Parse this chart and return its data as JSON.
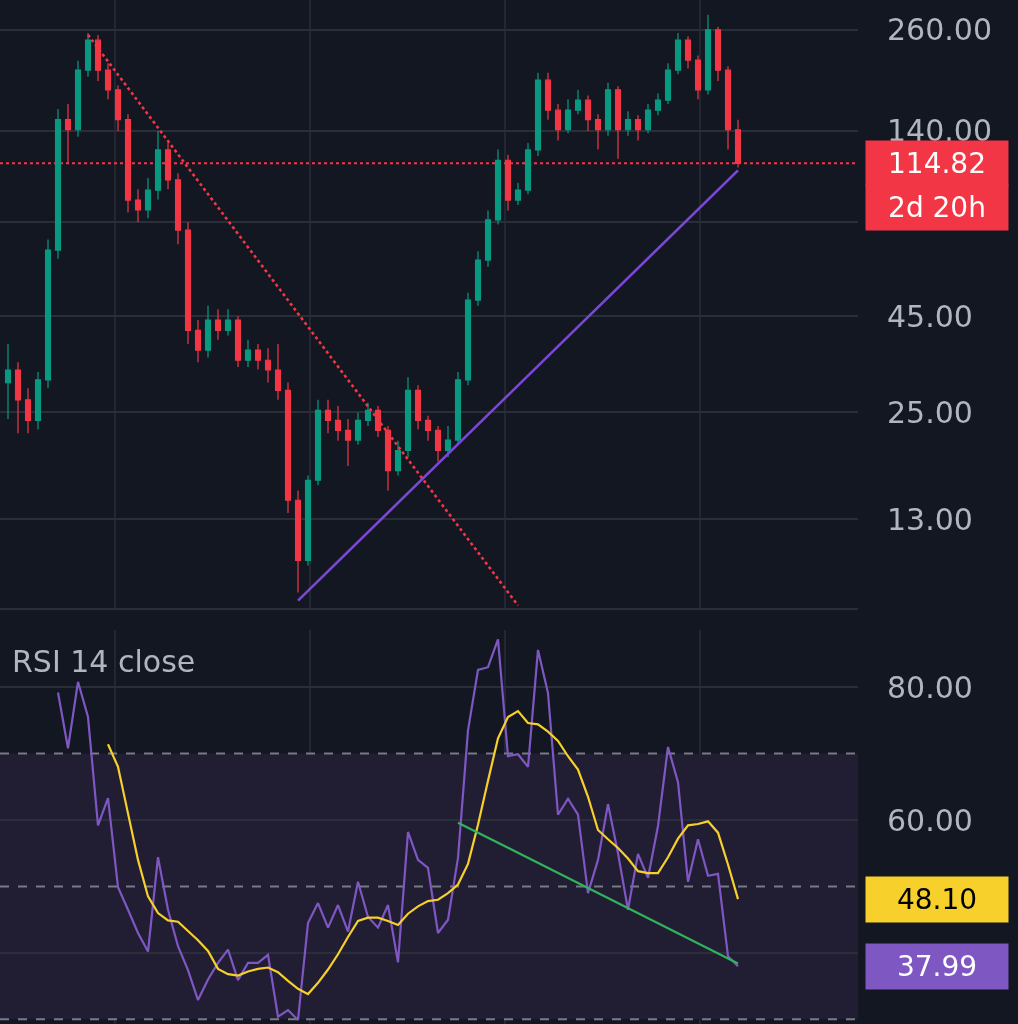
{
  "chart_data": [
    {
      "type": "candlestick",
      "log": true,
      "grid": "y",
      "tick_labels": "y",
      "ylim": [
        7.55,
        312
      ],
      "yticks": [
        {
          "value": 13,
          "label": "13.00"
        },
        {
          "value": 25,
          "label": "25.00"
        },
        {
          "value": 45,
          "label": "45.00"
        },
        {
          "value": 80,
          "label": null
        },
        {
          "value": 140,
          "label": "140.00"
        },
        {
          "value": 260,
          "label": "260.00"
        }
      ],
      "categories": [
        null,
        null,
        null,
        null,
        null,
        null,
        null,
        null,
        null,
        null,
        null,
        null,
        null,
        null,
        null,
        null,
        null,
        null,
        null,
        null,
        null,
        null,
        null,
        null,
        null,
        null,
        null,
        null,
        null,
        null,
        null,
        null,
        null,
        null,
        null,
        null,
        null,
        null,
        null,
        null,
        null,
        null,
        null,
        null,
        null,
        null,
        null,
        null,
        null,
        null,
        null,
        null,
        null,
        null,
        null,
        null,
        null,
        null,
        null,
        null,
        null,
        null,
        null,
        null,
        null,
        null,
        null,
        null,
        null,
        null,
        null,
        null,
        null,
        null
      ],
      "ohlc": [
        [
          30,
          38,
          24,
          32.4
        ],
        [
          32.4,
          34,
          22,
          27.0
        ],
        [
          27.0,
          29,
          22,
          23.8
        ],
        [
          23.8,
          32,
          22.5,
          30.5
        ],
        [
          30.5,
          72,
          29,
          67.5
        ],
        [
          67.5,
          160,
          64,
          150
        ],
        [
          150,
          165,
          115,
          141
        ],
        [
          141,
          215,
          135,
          203
        ],
        [
          203,
          255,
          195,
          244
        ],
        [
          244,
          252,
          190,
          203
        ],
        [
          203,
          212,
          170,
          180
        ],
        [
          180,
          185,
          140,
          150
        ],
        [
          150,
          155,
          85,
          91.7
        ],
        [
          91.7,
          98,
          80,
          86.3
        ],
        [
          86.3,
          105,
          82,
          97.5
        ],
        [
          97.5,
          140,
          92,
          124.6
        ],
        [
          124.6,
          130,
          98,
          103.7
        ],
        [
          103.7,
          108,
          70,
          76.3
        ],
        [
          76.3,
          80,
          38,
          41.3
        ],
        [
          41.3,
          44,
          34,
          36.6
        ],
        [
          36.6,
          48,
          35,
          44.0
        ],
        [
          44.0,
          47,
          39,
          41.3
        ],
        [
          41.3,
          47,
          40,
          44.0
        ],
        [
          44.0,
          45,
          33,
          34.4
        ],
        [
          34.4,
          39,
          33,
          36.6
        ],
        [
          36.6,
          38,
          32.5,
          34.4
        ],
        [
          34.4,
          37,
          30,
          32.4
        ],
        [
          32.4,
          38,
          27,
          28.6
        ],
        [
          28.6,
          30,
          13.5,
          14.6
        ],
        [
          14.6,
          15.5,
          8.3,
          10.1
        ],
        [
          10.1,
          17,
          9.8,
          16.5
        ],
        [
          16.5,
          27,
          16,
          25.3
        ],
        [
          25.3,
          27,
          22,
          23.8
        ],
        [
          23.8,
          26,
          21,
          22.4
        ],
        [
          22.4,
          24,
          18,
          21.1
        ],
        [
          21.1,
          25,
          20.5,
          23.8
        ],
        [
          23.8,
          26.5,
          23,
          25.3
        ],
        [
          25.3,
          26,
          21.5,
          22.4
        ],
        [
          22.4,
          23,
          15.5,
          17.5
        ],
        [
          17.5,
          21,
          17,
          19.8
        ],
        [
          19.8,
          31,
          19,
          28.6
        ],
        [
          28.6,
          29.5,
          22.5,
          23.8
        ],
        [
          23.8,
          24.5,
          21,
          22.4
        ],
        [
          22.4,
          23,
          18.5,
          19.8
        ],
        [
          19.8,
          23,
          19,
          21.1
        ],
        [
          21.1,
          32,
          20.5,
          30.5
        ],
        [
          30.5,
          52,
          29.5,
          49.7
        ],
        [
          49.7,
          67,
          48,
          63.5
        ],
        [
          63.5,
          86,
          61,
          81.2
        ],
        [
          81.2,
          125,
          79,
          117
        ],
        [
          117,
          121,
          86,
          91.7
        ],
        [
          91.7,
          102,
          89,
          97.5
        ],
        [
          97.5,
          130,
          95,
          124.6
        ],
        [
          124.6,
          200,
          120,
          191
        ],
        [
          191,
          200,
          150,
          159
        ],
        [
          159,
          165,
          132,
          141
        ],
        [
          141,
          170,
          138,
          159
        ],
        [
          159,
          180,
          155,
          169
        ],
        [
          169,
          174,
          140,
          150
        ],
        [
          150,
          155,
          125,
          141
        ],
        [
          141,
          188,
          136,
          180
        ],
        [
          180,
          184,
          118,
          141
        ],
        [
          141,
          158,
          136,
          150
        ],
        [
          150,
          154,
          132,
          141
        ],
        [
          141,
          165,
          138,
          159
        ],
        [
          159,
          176,
          154,
          169
        ],
        [
          169,
          212,
          165,
          203
        ],
        [
          203,
          255,
          198,
          244
        ],
        [
          244,
          250,
          205,
          216
        ],
        [
          216,
          222,
          170,
          180
        ],
        [
          180,
          285,
          175,
          260
        ],
        [
          260,
          265,
          190,
          203
        ],
        [
          203,
          208,
          125,
          141
        ],
        [
          141,
          150,
          112,
          114.82
        ]
      ],
      "colors": [
        "#089981",
        "#f23645",
        "#f23645",
        "#089981",
        "#089981",
        "#089981",
        "#f23645",
        "#089981",
        "#089981",
        "#f23645",
        "#f23645",
        "#f23645",
        "#f23645",
        "#f23645",
        "#089981",
        "#089981",
        "#f23645",
        "#f23645",
        "#f23645",
        "#f23645",
        "#089981",
        "#f23645",
        "#089981",
        "#f23645",
        "#089981",
        "#f23645",
        "#f23645",
        "#f23645",
        "#f23645",
        "#f23645",
        "#089981",
        "#089981",
        "#f23645",
        "#f23645",
        "#f23645",
        "#089981",
        "#089981",
        "#f23645",
        "#f23645",
        "#089981",
        "#089981",
        "#f23645",
        "#f23645",
        "#f23645",
        "#089981",
        "#089981",
        "#089981",
        "#089981",
        "#089981",
        "#089981",
        "#f23645",
        "#089981",
        "#089981",
        "#089981",
        "#f23645",
        "#f23645",
        "#089981",
        "#089981",
        "#f23645",
        "#f23645",
        "#089981",
        "#f23645",
        "#089981",
        "#f23645",
        "#089981",
        "#089981",
        "#089981",
        "#089981",
        "#f23645",
        "#f23645",
        "#089981",
        "#f23645",
        "#f23645",
        "#f23645"
      ],
      "series": [
        {
          "type": "line",
          "color": "#7b47d6",
          "line_style": "solid",
          "values": [
            null,
            null,
            null,
            null,
            null,
            null,
            null,
            null,
            null,
            null,
            null,
            null,
            null,
            null,
            null,
            null,
            null,
            null,
            null,
            null,
            null,
            null,
            null,
            null,
            null,
            null,
            null,
            null,
            null,
            7.9,
            null,
            null,
            null,
            null,
            null,
            null,
            null,
            null,
            null,
            null,
            null,
            null,
            null,
            null,
            null,
            null,
            null,
            null,
            null,
            null,
            null,
            null,
            null,
            null,
            null,
            null,
            null,
            null,
            null,
            null,
            null,
            null,
            null,
            null,
            null,
            null,
            null,
            null,
            null,
            null,
            null,
            null,
            null,
            110
          ]
        },
        {
          "type": "line",
          "color": "#f23645",
          "line_style": "dotted",
          "values": [
            null,
            null,
            null,
            null,
            null,
            null,
            null,
            null,
            252,
            null,
            null,
            null,
            null,
            null,
            null,
            null,
            null,
            null,
            null,
            null,
            null,
            null,
            null,
            null,
            null,
            null,
            null,
            null,
            null,
            null,
            null,
            null,
            null,
            null,
            null,
            null,
            null,
            null,
            null,
            null,
            null,
            null,
            null,
            null,
            null,
            null,
            null,
            null,
            null,
            null,
            null,
            7.67,
            null,
            null,
            null,
            null,
            null,
            null,
            null,
            null,
            null,
            null,
            null,
            null,
            null,
            null,
            null,
            null,
            null,
            null,
            null,
            null,
            null,
            null
          ]
        }
      ],
      "ref_lines": [
        {
          "axis": "y",
          "value": 114.82,
          "label": "114.82",
          "color": "#f23645",
          "line_style": "dotted"
        }
      ],
      "annotations": [
        "2d 20h"
      ]
    },
    {
      "type": "line",
      "title": "RSI 14 close",
      "grid": "y",
      "tick_labels": "y",
      "ylim": [
        29.3,
        88.6
      ],
      "yticks": [
        {
          "value": 40,
          "label": null
        },
        {
          "value": 60,
          "label": "60.00"
        },
        {
          "value": 80,
          "label": "80.00"
        }
      ],
      "categories": [
        null,
        null,
        null,
        null,
        null,
        null,
        null,
        null,
        null,
        null,
        null,
        null,
        null,
        null,
        null,
        null,
        null,
        null,
        null,
        null,
        null,
        null,
        null,
        null,
        null,
        null,
        null,
        null,
        null,
        null,
        null,
        null,
        null,
        null,
        null,
        null,
        null,
        null,
        null,
        null,
        null,
        null,
        null,
        null,
        null,
        null,
        null,
        null,
        null,
        null,
        null,
        null,
        null,
        null,
        null,
        null,
        null,
        null,
        null,
        null,
        null,
        null,
        null,
        null,
        null,
        null,
        null,
        null,
        null,
        null,
        null,
        null,
        null,
        null
      ],
      "bands": [
        {
          "axis": "y",
          "from": 30,
          "to": 70,
          "color": "#211d33"
        }
      ],
      "annotations": [
        "37.99",
        "48.10"
      ],
      "ref_lines": [
        {
          "axis": "y",
          "value": 70,
          "color": "#787b86",
          "line_style": "dashed"
        },
        {
          "axis": "y",
          "value": 50,
          "color": "#787b86",
          "line_style": "dashed"
        },
        {
          "axis": "y",
          "value": 30,
          "color": "#787b86",
          "line_style": "dashed"
        }
      ],
      "series": [
        {
          "type": "line",
          "color": "#7e57c2",
          "values": [
            null,
            null,
            null,
            null,
            null,
            79.2,
            70.8,
            80.8,
            75.5,
            59.2,
            63.3,
            49.9,
            46.5,
            43.0,
            40.2,
            54.4,
            46.5,
            41.0,
            37.4,
            32.9,
            36.0,
            38.5,
            40.5,
            35.9,
            38.5,
            38.5,
            39.7,
            30.4,
            31.4,
            29.9,
            44.5,
            47.5,
            43.8,
            47.2,
            43.2,
            50.7,
            45.4,
            43.8,
            47.2,
            38.6,
            58.2,
            54.0,
            52.8,
            43.0,
            45.0,
            54.3,
            73.5,
            82.6,
            83.0,
            87.2,
            69.6,
            69.9,
            68.0,
            85.6,
            79.1,
            60.8,
            63.2,
            60.8,
            49.0,
            54.0,
            62.4,
            55.0,
            46.5,
            54.9,
            51.3,
            59.1,
            71.0,
            65.7,
            50.7,
            57.1,
            51.6,
            51.9,
            39.5,
            38.0
          ]
        },
        {
          "type": "line",
          "color": "#f7d02b",
          "values": [
            null,
            null,
            null,
            null,
            null,
            null,
            null,
            null,
            null,
            null,
            71.4,
            68.0,
            61.0,
            54.0,
            48.5,
            46.0,
            44.9,
            44.7,
            43.3,
            41.9,
            40.3,
            37.6,
            36.8,
            36.6,
            37.2,
            37.6,
            37.8,
            37.1,
            35.8,
            34.6,
            33.8,
            35.5,
            37.5,
            39.8,
            42.4,
            44.8,
            45.3,
            45.3,
            44.8,
            44.2,
            45.9,
            47.0,
            47.8,
            48.0,
            49.0,
            50.3,
            53.4,
            59.3,
            65.9,
            72.3,
            75.5,
            76.4,
            74.6,
            74.4,
            73.3,
            71.9,
            69.6,
            67.6,
            63.5,
            58.5,
            57.1,
            55.8,
            54.2,
            52.3,
            52.0,
            52.0,
            54.4,
            57.2,
            59.2,
            59.4,
            59.8,
            58.1,
            53.3,
            48.1
          ]
        },
        {
          "type": "line",
          "color": "#2fb35c",
          "values": [
            null,
            null,
            null,
            null,
            null,
            null,
            null,
            null,
            null,
            null,
            null,
            null,
            null,
            null,
            null,
            null,
            null,
            null,
            null,
            null,
            null,
            null,
            null,
            null,
            null,
            null,
            null,
            null,
            null,
            null,
            null,
            null,
            null,
            null,
            null,
            null,
            null,
            null,
            null,
            null,
            null,
            null,
            null,
            null,
            null,
            59.6,
            null,
            null,
            null,
            null,
            null,
            null,
            null,
            null,
            null,
            null,
            null,
            null,
            null,
            null,
            null,
            null,
            null,
            null,
            null,
            null,
            null,
            null,
            null,
            null,
            null,
            null,
            null,
            38.4
          ]
        }
      ]
    }
  ]
}
